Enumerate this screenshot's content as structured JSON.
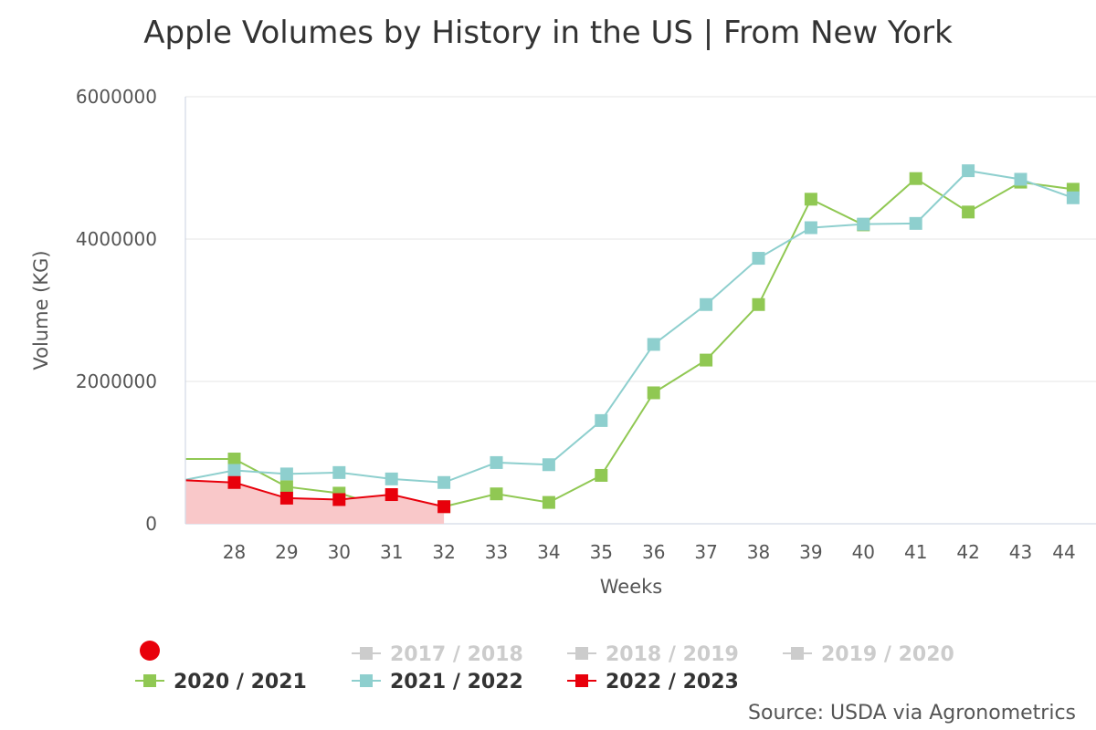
{
  "chart_data": {
    "type": "line",
    "title": "Apple Volumes by History in the US | From New York",
    "xlabel": "Weeks",
    "ylabel": "Volume (KG)",
    "ylim": [
      0,
      6000000
    ],
    "y_ticks": [
      0,
      2000000,
      4000000,
      6000000
    ],
    "y_tick_labels": [
      "0",
      "2000000",
      "4000000",
      "6000000"
    ],
    "x_range": [
      27.08,
      44.3
    ],
    "categories": [
      "28",
      "29",
      "30",
      "31",
      "32",
      "33",
      "34",
      "35",
      "36",
      "37",
      "38",
      "39",
      "40",
      "41",
      "42",
      "43",
      "44"
    ],
    "grid": true,
    "series": [
      {
        "name": "2020 / 2021",
        "color": "#90c853",
        "visible": true,
        "filled": false,
        "x": [
          27.08,
          28,
          29,
          30,
          31,
          32,
          33,
          34,
          35,
          36,
          37,
          38,
          39,
          40,
          41,
          42,
          43,
          44
        ],
        "values": [
          910000,
          910000,
          520000,
          430000,
          210000,
          240000,
          420000,
          300000,
          680000,
          1840000,
          2300000,
          3080000,
          4560000,
          4200000,
          4850000,
          4380000,
          4800000,
          4700000
        ]
      },
      {
        "name": "2021 / 2022",
        "color": "#8ecfce",
        "visible": true,
        "filled": false,
        "x": [
          27.08,
          28,
          29,
          30,
          31,
          32,
          33,
          34,
          35,
          36,
          37,
          38,
          39,
          40,
          41,
          42,
          43,
          44
        ],
        "values": [
          620000,
          750000,
          700000,
          720000,
          630000,
          580000,
          860000,
          830000,
          1450000,
          2520000,
          3080000,
          3730000,
          4160000,
          4210000,
          4220000,
          4960000,
          4840000,
          4580000
        ]
      },
      {
        "name": "2022 / 2023",
        "color": "#e8000b",
        "visible": true,
        "filled": true,
        "fill_color": "#f9c8c9",
        "x": [
          27.08,
          28,
          29,
          30,
          31,
          32
        ],
        "values": [
          610000,
          580000,
          360000,
          340000,
          410000,
          240000
        ]
      }
    ],
    "legend": {
      "placement": "bottom",
      "hidden_items": [
        "2017 / 2018",
        "2018 / 2019",
        "2019 / 2020"
      ],
      "hidden_color": "#cccccc",
      "marker_color": "#e8000b"
    },
    "source": "Source: USDA via Agronometrics"
  }
}
